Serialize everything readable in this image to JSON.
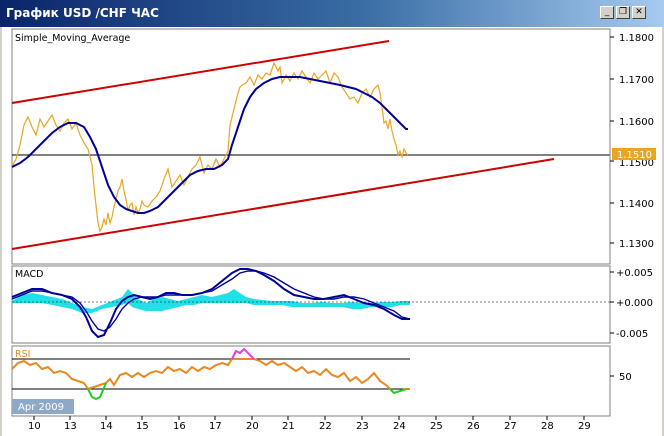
{
  "window": {
    "title": "График USD /CHF  ЧАС",
    "minimize_label": "_",
    "restore_label": "❐",
    "close_label": "✕"
  },
  "main_panel": {
    "indicator_label": "Simple_Moving_Average",
    "price_ticks": [
      "1.1800",
      "1.1700",
      "1.1600",
      "1.1510",
      "1.1500",
      "1.1400",
      "1.1300"
    ],
    "current_price": "1.1510"
  },
  "macd_panel": {
    "label": "MACD",
    "ticks": [
      "+0.005",
      "+0.000",
      "-0.005"
    ]
  },
  "rsi_panel": {
    "label": "RSI",
    "ticks": [
      "50"
    ]
  },
  "time_axis": {
    "period_label": "Apr 2009",
    "day_labels": [
      "10",
      "13",
      "14",
      "15",
      "16",
      "17",
      "20",
      "21",
      "22",
      "23",
      "24",
      "25",
      "26",
      "27",
      "28",
      "29"
    ]
  },
  "colors": {
    "price_line": "#e8a623",
    "moving_average": "#000099",
    "channel_lines": "#cc0000",
    "macd_lines": "#000099",
    "macd_histogram": "#22e0e8",
    "rsi_line": "#e88a22",
    "rsi_overbought": "#e040e0",
    "rsi_oversold": "#22cc22",
    "price_tag_bg": "#e8a623"
  }
}
